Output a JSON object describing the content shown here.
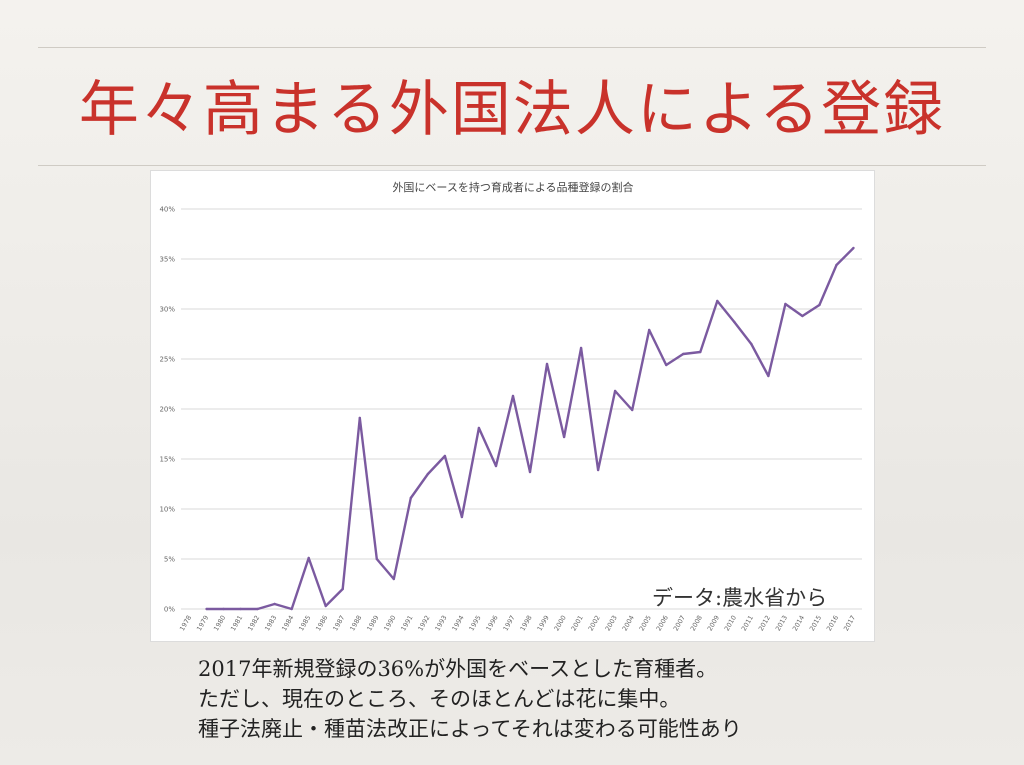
{
  "slide": {
    "title": "年々高まる外国法人による登録",
    "source_note": "データ:農水省から",
    "body_lines": [
      "2017年新規登録の36%が外国をベースとした育種者。",
      "ただし、現在のところ、そのほとんどは花に集中。",
      "種子法廃止・種苗法改正によってそれは変わる可能性あり"
    ]
  },
  "colors": {
    "title": "#c9322b",
    "series": "#7b5aa0"
  },
  "chart_data": {
    "type": "line",
    "title": "外国にベースを持つ育成者による品種登録の割合",
    "xlabel": "",
    "ylabel": "",
    "ylim": [
      0,
      40
    ],
    "yticks": [
      "0%",
      "5%",
      "10%",
      "15%",
      "20%",
      "25%",
      "30%",
      "35%",
      "40%"
    ],
    "grid": true,
    "categories": [
      "1978",
      "1979",
      "1980",
      "1981",
      "1982",
      "1983",
      "1984",
      "1985",
      "1986",
      "1987",
      "1988",
      "1989",
      "1990",
      "1991",
      "1992",
      "1993",
      "1994",
      "1995",
      "1996",
      "1997",
      "1998",
      "1999",
      "2000",
      "2001",
      "2002",
      "2003",
      "2004",
      "2005",
      "2006",
      "2007",
      "2008",
      "2009",
      "2010",
      "2011",
      "2012",
      "2013",
      "2014",
      "2015",
      "2016",
      "2017"
    ],
    "series": [
      {
        "values": [
          null,
          0,
          0,
          0,
          0,
          0.5,
          0,
          5.1,
          0.3,
          2.0,
          19.1,
          5.0,
          3.0,
          11.1,
          13.5,
          15.3,
          9.2,
          18.1,
          14.3,
          21.3,
          13.7,
          24.5,
          17.2,
          26.1,
          13.9,
          21.8,
          19.9,
          27.9,
          24.4,
          25.5,
          25.7,
          30.8,
          28.7,
          26.5,
          23.3,
          30.5,
          29.3,
          30.4,
          34.4,
          36.1
        ]
      }
    ]
  }
}
